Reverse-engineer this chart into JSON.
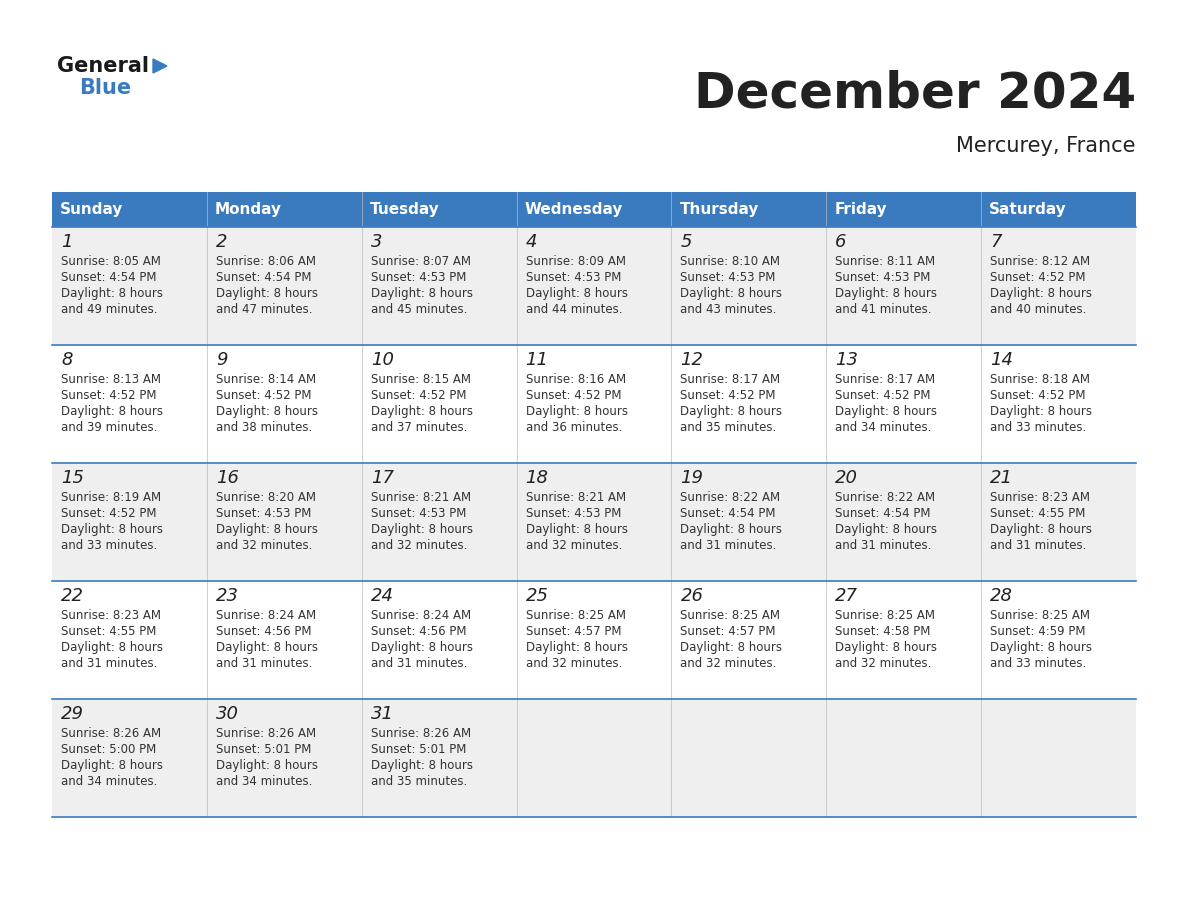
{
  "title": "December 2024",
  "subtitle": "Mercurey, France",
  "header_color": "#3a7abf",
  "header_text_color": "#ffffff",
  "cell_bg_odd": "#efefef",
  "cell_bg_even": "#ffffff",
  "day_names": [
    "Sunday",
    "Monday",
    "Tuesday",
    "Wednesday",
    "Thursday",
    "Friday",
    "Saturday"
  ],
  "weeks": [
    [
      {
        "day": "1",
        "sunrise": "8:05 AM",
        "sunset": "4:54 PM",
        "daylight": "8 hours and 49 minutes."
      },
      {
        "day": "2",
        "sunrise": "8:06 AM",
        "sunset": "4:54 PM",
        "daylight": "8 hours and 47 minutes."
      },
      {
        "day": "3",
        "sunrise": "8:07 AM",
        "sunset": "4:53 PM",
        "daylight": "8 hours and 45 minutes."
      },
      {
        "day": "4",
        "sunrise": "8:09 AM",
        "sunset": "4:53 PM",
        "daylight": "8 hours and 44 minutes."
      },
      {
        "day": "5",
        "sunrise": "8:10 AM",
        "sunset": "4:53 PM",
        "daylight": "8 hours and 43 minutes."
      },
      {
        "day": "6",
        "sunrise": "8:11 AM",
        "sunset": "4:53 PM",
        "daylight": "8 hours and 41 minutes."
      },
      {
        "day": "7",
        "sunrise": "8:12 AM",
        "sunset": "4:52 PM",
        "daylight": "8 hours and 40 minutes."
      }
    ],
    [
      {
        "day": "8",
        "sunrise": "8:13 AM",
        "sunset": "4:52 PM",
        "daylight": "8 hours and 39 minutes."
      },
      {
        "day": "9",
        "sunrise": "8:14 AM",
        "sunset": "4:52 PM",
        "daylight": "8 hours and 38 minutes."
      },
      {
        "day": "10",
        "sunrise": "8:15 AM",
        "sunset": "4:52 PM",
        "daylight": "8 hours and 37 minutes."
      },
      {
        "day": "11",
        "sunrise": "8:16 AM",
        "sunset": "4:52 PM",
        "daylight": "8 hours and 36 minutes."
      },
      {
        "day": "12",
        "sunrise": "8:17 AM",
        "sunset": "4:52 PM",
        "daylight": "8 hours and 35 minutes."
      },
      {
        "day": "13",
        "sunrise": "8:17 AM",
        "sunset": "4:52 PM",
        "daylight": "8 hours and 34 minutes."
      },
      {
        "day": "14",
        "sunrise": "8:18 AM",
        "sunset": "4:52 PM",
        "daylight": "8 hours and 33 minutes."
      }
    ],
    [
      {
        "day": "15",
        "sunrise": "8:19 AM",
        "sunset": "4:52 PM",
        "daylight": "8 hours and 33 minutes."
      },
      {
        "day": "16",
        "sunrise": "8:20 AM",
        "sunset": "4:53 PM",
        "daylight": "8 hours and 32 minutes."
      },
      {
        "day": "17",
        "sunrise": "8:21 AM",
        "sunset": "4:53 PM",
        "daylight": "8 hours and 32 minutes."
      },
      {
        "day": "18",
        "sunrise": "8:21 AM",
        "sunset": "4:53 PM",
        "daylight": "8 hours and 32 minutes."
      },
      {
        "day": "19",
        "sunrise": "8:22 AM",
        "sunset": "4:54 PM",
        "daylight": "8 hours and 31 minutes."
      },
      {
        "day": "20",
        "sunrise": "8:22 AM",
        "sunset": "4:54 PM",
        "daylight": "8 hours and 31 minutes."
      },
      {
        "day": "21",
        "sunrise": "8:23 AM",
        "sunset": "4:55 PM",
        "daylight": "8 hours and 31 minutes."
      }
    ],
    [
      {
        "day": "22",
        "sunrise": "8:23 AM",
        "sunset": "4:55 PM",
        "daylight": "8 hours and 31 minutes."
      },
      {
        "day": "23",
        "sunrise": "8:24 AM",
        "sunset": "4:56 PM",
        "daylight": "8 hours and 31 minutes."
      },
      {
        "day": "24",
        "sunrise": "8:24 AM",
        "sunset": "4:56 PM",
        "daylight": "8 hours and 31 minutes."
      },
      {
        "day": "25",
        "sunrise": "8:25 AM",
        "sunset": "4:57 PM",
        "daylight": "8 hours and 32 minutes."
      },
      {
        "day": "26",
        "sunrise": "8:25 AM",
        "sunset": "4:57 PM",
        "daylight": "8 hours and 32 minutes."
      },
      {
        "day": "27",
        "sunrise": "8:25 AM",
        "sunset": "4:58 PM",
        "daylight": "8 hours and 32 minutes."
      },
      {
        "day": "28",
        "sunrise": "8:25 AM",
        "sunset": "4:59 PM",
        "daylight": "8 hours and 33 minutes."
      }
    ],
    [
      {
        "day": "29",
        "sunrise": "8:26 AM",
        "sunset": "5:00 PM",
        "daylight": "8 hours and 34 minutes."
      },
      {
        "day": "30",
        "sunrise": "8:26 AM",
        "sunset": "5:01 PM",
        "daylight": "8 hours and 34 minutes."
      },
      {
        "day": "31",
        "sunrise": "8:26 AM",
        "sunset": "5:01 PM",
        "daylight": "8 hours and 35 minutes."
      },
      null,
      null,
      null,
      null
    ]
  ],
  "logo_triangle_color": "#3a7abf",
  "divider_color": "#3a7abf",
  "text_color_dark": "#222222",
  "cell_text_color": "#333333",
  "title_fontsize": 36,
  "subtitle_fontsize": 15,
  "header_fontsize": 11,
  "day_num_fontsize": 13,
  "cell_fontsize": 8.5
}
